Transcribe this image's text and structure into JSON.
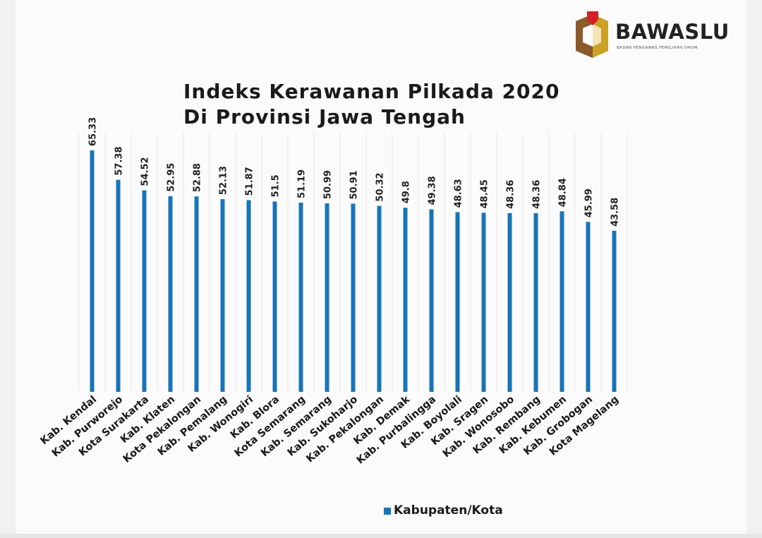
{
  "logo": {
    "name": "BAWASLU",
    "subtitle": "BADAN PENGAWAS PEMILIHAN UMUM",
    "colors": {
      "red": "#d42026",
      "brown": "#8a5a2b",
      "gold": "#c9a227"
    }
  },
  "colors": {
    "bar": "#1874b8",
    "grid": "#e7e7e7"
  },
  "chart_data": {
    "type": "bar",
    "title": [
      "Indeks Kerawanan Pilkada 2020",
      "Di Provinsi Jawa Tengah"
    ],
    "legend": {
      "label": "Kabupaten/Kota",
      "position": "bottom"
    },
    "ylim": [
      0,
      70
    ],
    "grid": true,
    "categories": [
      "Kab. Kendal",
      "Kab. Purworejo",
      "Kota Surakarta",
      "Kab. Klaten",
      "Kota Pekalongan",
      "Kab. Pemalang",
      "Kab. Wonogiri",
      "Kab. Blora",
      "Kota Semarang",
      "Kab. Semarang",
      "Kab. Sukoharjo",
      "Kab. Pekalongan",
      "Kab. Demak",
      "Kab. Purbalingga",
      "Kab. Boyolali",
      "Kab. Sragen",
      "Kab. Wonosobo",
      "Kab. Rembang",
      "Kab. Kebumen",
      "Kab. Grobogan",
      "Kota Magelang"
    ],
    "values": [
      65.33,
      57.38,
      54.52,
      52.95,
      52.88,
      52.13,
      51.87,
      51.5,
      51.19,
      50.99,
      50.91,
      50.32,
      49.8,
      49.38,
      48.63,
      48.45,
      48.36,
      48.36,
      48.84,
      45.99,
      43.58
    ],
    "value_labels": [
      "65.33",
      "57.38",
      "54.52",
      "52.95",
      "52.88",
      "52.13",
      "51.87",
      "51.5",
      "51.19",
      "50.99",
      "50.91",
      "50.32",
      "49.8",
      "49.38",
      "48.63",
      "48.45",
      "48.36",
      "48.36",
      "48.84",
      "45.99",
      "43.58"
    ]
  }
}
